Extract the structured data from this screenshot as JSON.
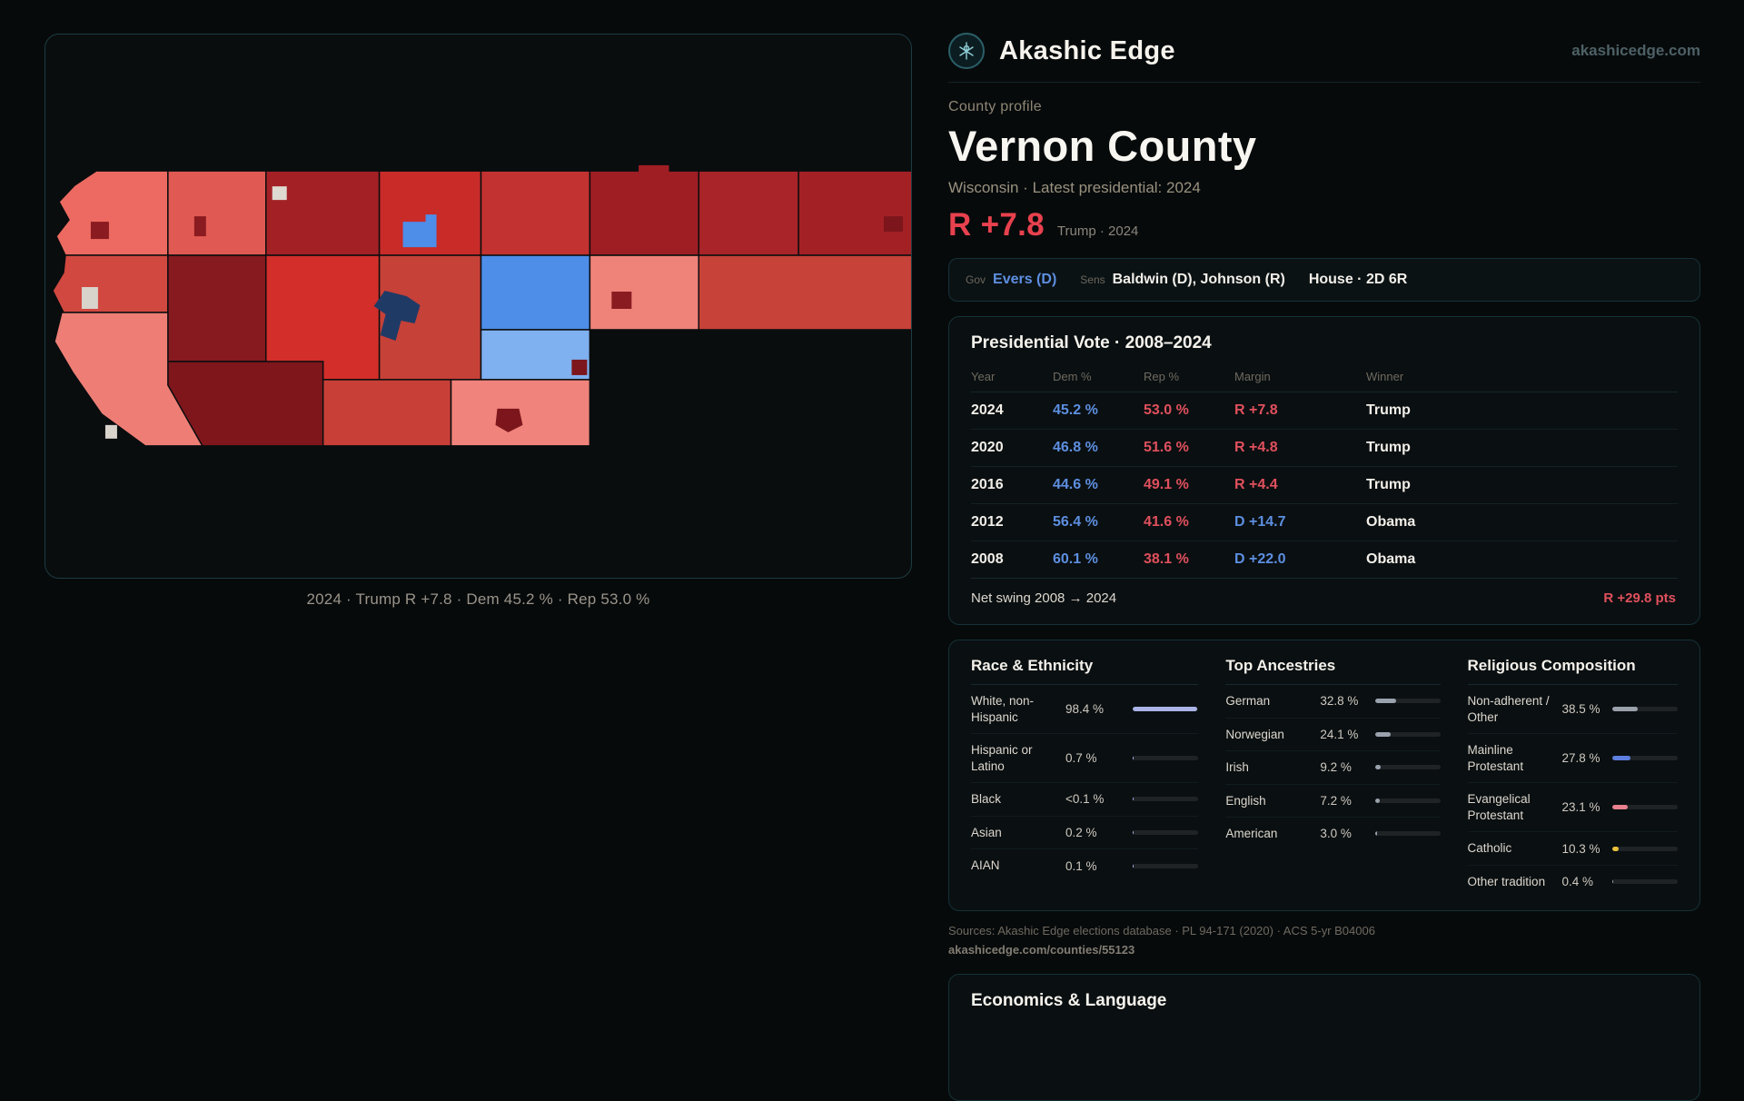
{
  "brand": {
    "name": "Akashic Edge",
    "site": "akashicedge.com"
  },
  "map": {
    "caption": "2024 · Trump R +7.8 · Dem 45.2 % · Rep 53.0 %"
  },
  "profile": {
    "kicker": "County profile",
    "title": "Vernon County",
    "subtitle": "Wisconsin · Latest presidential: 2024",
    "margin": "R +7.8",
    "margin_detail": "Trump · 2024"
  },
  "officials": {
    "gov_label": "Gov",
    "gov": "Evers (D)",
    "sens_label": "Sens",
    "sens": "Baldwin (D), Johnson (R)",
    "house": "House · 2D 6R"
  },
  "presidential": {
    "title": "Presidential Vote · 2008–2024",
    "columns": [
      "Year",
      "Dem %",
      "Rep %",
      "Margin",
      "Winner"
    ],
    "rows": [
      {
        "year": "2024",
        "dem": "45.2 %",
        "rep": "53.0 %",
        "margin": "R +7.8",
        "winner": "Trump"
      },
      {
        "year": "2020",
        "dem": "46.8 %",
        "rep": "51.6 %",
        "margin": "R +4.8",
        "winner": "Trump"
      },
      {
        "year": "2016",
        "dem": "44.6 %",
        "rep": "49.1 %",
        "margin": "R +4.4",
        "winner": "Trump"
      },
      {
        "year": "2012",
        "dem": "56.4 %",
        "rep": "41.6 %",
        "margin": "D +14.7",
        "winner": "Obama"
      },
      {
        "year": "2008",
        "dem": "60.1 %",
        "rep": "38.1 %",
        "margin": "D +22.0",
        "winner": "Obama"
      }
    ],
    "net_swing_label": "Net swing 2008 → 2024",
    "net_swing_value": "R +29.8 pts"
  },
  "demographics": {
    "race": {
      "title": "Race & Ethnicity",
      "rows": [
        {
          "label": "White, non-Hispanic",
          "value": "98.4 %",
          "pct": 98.4,
          "bar": "#aab4e6"
        },
        {
          "label": "Hispanic or Latino",
          "value": "0.7 %",
          "pct": 0.7,
          "bar": "#aab4e6"
        },
        {
          "label": "Black",
          "value": "<0.1 %",
          "pct": 0.05,
          "bar": "#aab4e6"
        },
        {
          "label": "Asian",
          "value": "0.2 %",
          "pct": 0.2,
          "bar": "#aab4e6"
        },
        {
          "label": "AIAN",
          "value": "0.1 %",
          "pct": 0.1,
          "bar": "#aab4e6"
        }
      ]
    },
    "ancestries": {
      "title": "Top Ancestries",
      "rows": [
        {
          "label": "German",
          "value": "32.8 %",
          "pct": 32.8,
          "bar": "#99a2ad"
        },
        {
          "label": "Norwegian",
          "value": "24.1 %",
          "pct": 24.1,
          "bar": "#99a2ad"
        },
        {
          "label": "Irish",
          "value": "9.2 %",
          "pct": 9.2,
          "bar": "#99a2ad"
        },
        {
          "label": "English",
          "value": "7.2 %",
          "pct": 7.2,
          "bar": "#99a2ad"
        },
        {
          "label": "American",
          "value": "3.0 %",
          "pct": 3.0,
          "bar": "#99a2ad"
        }
      ]
    },
    "religion": {
      "title": "Religious Composition",
      "rows": [
        {
          "label": "Non-adherent / Other",
          "value": "38.5 %",
          "pct": 38.5,
          "bar": "#9aa1ab"
        },
        {
          "label": "Mainline Protestant",
          "value": "27.8 %",
          "pct": 27.8,
          "bar": "#5d7fe0"
        },
        {
          "label": "Evangelical Protestant",
          "value": "23.1 %",
          "pct": 23.1,
          "bar": "#e8808e"
        },
        {
          "label": "Catholic",
          "value": "10.3 %",
          "pct": 10.3,
          "bar": "#e8c23a"
        },
        {
          "label": "Other tradition",
          "value": "0.4 %",
          "pct": 0.4,
          "bar": "#9aa1ab"
        }
      ]
    }
  },
  "sources": {
    "line1": "Sources: Akashic Edge elections database · PL 94-171 (2020) · ACS 5-yr B04006",
    "line2": "akashicedge.com/counties/55123"
  },
  "economics": {
    "title": "Economics & Language"
  },
  "colors": {
    "dem": "#5d8fe0",
    "rep": "#e0505d",
    "accent_red": "#e8414e"
  }
}
